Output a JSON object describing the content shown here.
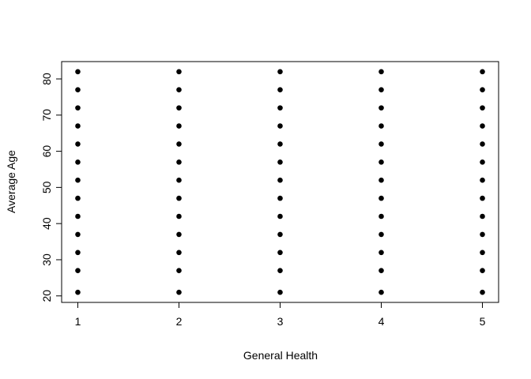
{
  "chart_data": {
    "type": "scatter",
    "x_label": "General Health",
    "y_label": "Average Age",
    "x": [
      1,
      1,
      1,
      1,
      1,
      1,
      1,
      1,
      1,
      1,
      1,
      1,
      1,
      2,
      2,
      2,
      2,
      2,
      2,
      2,
      2,
      2,
      2,
      2,
      2,
      2,
      3,
      3,
      3,
      3,
      3,
      3,
      3,
      3,
      3,
      3,
      3,
      3,
      3,
      4,
      4,
      4,
      4,
      4,
      4,
      4,
      4,
      4,
      4,
      4,
      4,
      4,
      5,
      5,
      5,
      5,
      5,
      5,
      5,
      5,
      5,
      5,
      5,
      5,
      5
    ],
    "values": [
      21,
      27,
      32,
      37,
      42,
      47,
      52,
      57,
      62,
      67,
      72,
      77,
      82,
      21,
      27,
      32,
      37,
      42,
      47,
      52,
      57,
      62,
      67,
      72,
      77,
      82,
      21,
      27,
      32,
      37,
      42,
      47,
      52,
      57,
      62,
      67,
      72,
      77,
      82,
      21,
      27,
      32,
      37,
      42,
      47,
      52,
      57,
      62,
      67,
      72,
      77,
      82,
      21,
      27,
      32,
      37,
      42,
      47,
      52,
      57,
      62,
      67,
      72,
      77,
      82
    ],
    "color": "#000000",
    "xlim": [
      0.84,
      5.16
    ],
    "ylim": [
      18.2,
      84.8
    ],
    "xticks": [
      1,
      2,
      3,
      4,
      5
    ],
    "yticks": [
      20,
      30,
      40,
      50,
      60,
      70,
      80
    ]
  }
}
